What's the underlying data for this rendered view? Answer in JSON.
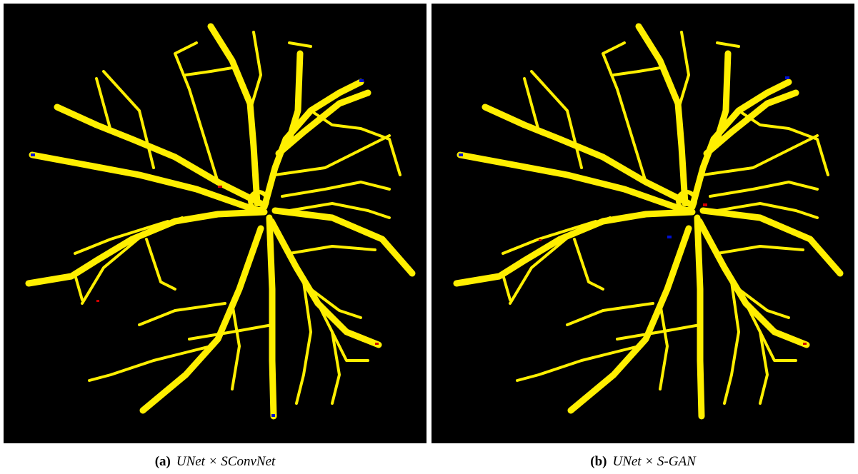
{
  "figures": [
    {
      "label": "(a)",
      "caption": "UNet × SConvNet"
    },
    {
      "label": "(b)",
      "caption": "UNet × S-GAN"
    }
  ]
}
